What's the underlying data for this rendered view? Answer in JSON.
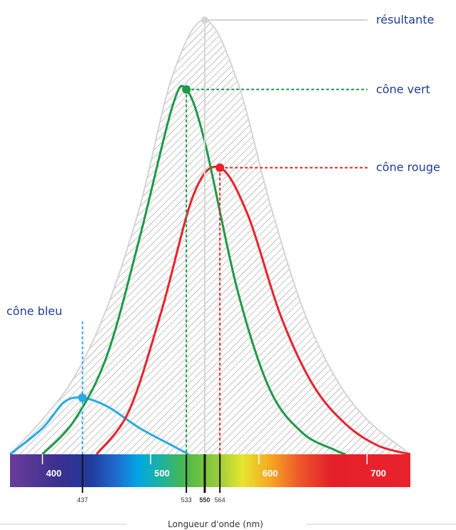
{
  "chart_data": {
    "type": "line",
    "title": "",
    "xlabel": "Longueur d'onde (nm)",
    "ylabel": "",
    "xlim": [
      370,
      740
    ],
    "ylim": [
      0,
      1
    ],
    "x_ticks": [
      "400",
      "500",
      "600",
      "700"
    ],
    "peak_markers": [
      "437",
      "533",
      "550",
      "564"
    ],
    "series": [
      {
        "name": "résultante",
        "peak": 550,
        "color": "#d4d4d4",
        "x": [
          370,
          400,
          430,
          460,
          490,
          520,
          550,
          580,
          610,
          640,
          670,
          700,
          740
        ],
        "y": [
          0.0,
          0.08,
          0.18,
          0.34,
          0.57,
          0.87,
          1.0,
          0.86,
          0.58,
          0.34,
          0.18,
          0.08,
          0.0
        ]
      },
      {
        "name": "cône vert",
        "peak": 533,
        "color": "#1e9a47",
        "x": [
          400,
          430,
          460,
          490,
          520,
          533,
          550,
          580,
          610,
          640,
          670,
          680
        ],
        "y": [
          0.0,
          0.08,
          0.23,
          0.5,
          0.8,
          0.84,
          0.72,
          0.38,
          0.15,
          0.05,
          0.01,
          0.0
        ]
      },
      {
        "name": "cône rouge",
        "peak": 564,
        "color": "#e8232c",
        "x": [
          450,
          480,
          510,
          540,
          564,
          590,
          620,
          650,
          680,
          710,
          740
        ],
        "y": [
          0.0,
          0.1,
          0.33,
          0.6,
          0.66,
          0.55,
          0.32,
          0.16,
          0.07,
          0.02,
          0.0
        ]
      },
      {
        "name": "cône bleu",
        "peak": 437,
        "color": "#29abe2",
        "x": [
          370,
          400,
          420,
          437,
          460,
          490,
          520,
          535
        ],
        "y": [
          0.0,
          0.06,
          0.12,
          0.13,
          0.11,
          0.06,
          0.02,
          0.0
        ]
      }
    ],
    "grid": false,
    "legend": "labels placed at curve peaks"
  }
}
